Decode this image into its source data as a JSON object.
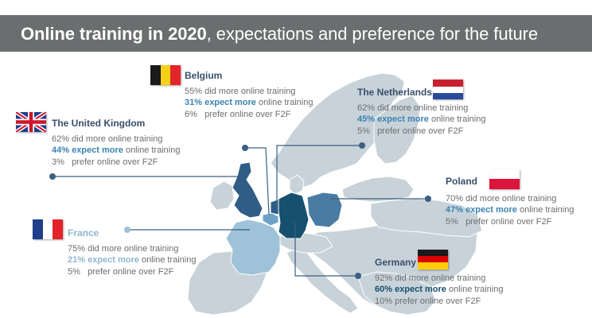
{
  "title": {
    "bold": "Online training in 2020",
    "rest": ", expectations and preference for the future"
  },
  "countries": {
    "belgium": {
      "name": "Belgium",
      "did_more": "55% did more online training",
      "expect_bold": "31% expect more",
      "expect_rest": " online training",
      "prefer": "6%   prefer online over F2F",
      "flag_colors": [
        "#1a1a1a",
        "#f7d117",
        "#e3242b"
      ]
    },
    "netherlands": {
      "name": "The Netherlands",
      "did_more": "62% did more online training",
      "expect_bold": "45% expect more",
      "expect_rest": " online training",
      "prefer": "5%   prefer online over F2F",
      "flag_colors": [
        "#c8202f",
        "#ffffff",
        "#2a4a9c"
      ]
    },
    "uk": {
      "name": "The United Kingdom",
      "did_more": "62% did more online training",
      "expect_bold": "44% expect more",
      "expect_rest": " online training",
      "prefer": "3%   prefer online over F2F",
      "flag_colors": [
        "#1f3f8a",
        "#ffffff",
        "#cf142b"
      ]
    },
    "poland": {
      "name": "Poland",
      "did_more": "70% did more online training",
      "expect_bold": "47% expect more",
      "expect_rest": " online training",
      "prefer": "5%   prefer online over F2F",
      "flag_colors": [
        "#ffffff",
        "#dc143c"
      ]
    },
    "france": {
      "name": "France",
      "did_more": "75% did more online training",
      "expect_bold": "21% expect more",
      "expect_rest": " online training",
      "prefer": "5%   prefer online over F2F",
      "flag_colors": [
        "#1f3f8a",
        "#ffffff",
        "#e3242b"
      ]
    },
    "germany": {
      "name": "Germany",
      "did_more": "92% did more online training",
      "expect_bold": "60% expect more",
      "expect_rest": " online training",
      "prefer": "10% prefer online over F2F",
      "flag_colors": [
        "#1a1a1a",
        "#dd0000",
        "#ffce00"
      ]
    }
  },
  "colors": {
    "title_bar": "#6b6e6f",
    "land": "#c8d2d9",
    "border": "#ffffff",
    "uk_fill": "#2f5d86",
    "netherlands_fill": "#2f5d86",
    "belgium_fill": "#6fa3c6",
    "france_fill": "#9ec3d8",
    "germany_fill": "#16506f",
    "poland_fill": "#4a7ca3",
    "connector": "#3a5f82"
  }
}
